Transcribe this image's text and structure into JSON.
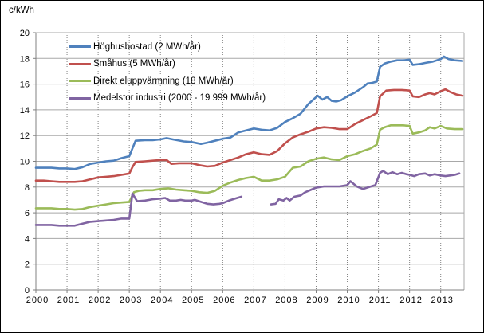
{
  "chart_data": {
    "type": "line",
    "title": "",
    "ylabel": "c/kWh",
    "xlabel": "",
    "legend_position": "top-left-inside",
    "grid": "horizontal-solid, vertical-dotted",
    "x_axis": {
      "min": 2000,
      "max": 2013.75,
      "tick_values": [
        2000,
        2001,
        2002,
        2003,
        2004,
        2005,
        2006,
        2007,
        2008,
        2009,
        2010,
        2011,
        2012,
        2013
      ],
      "tick_labels": [
        "2000",
        "2001",
        "2002",
        "2003",
        "2004",
        "2005",
        "2006",
        "2007",
        "2008",
        "2009",
        "2010",
        "2011",
        "2012",
        "2013"
      ]
    },
    "y_axis": {
      "min": 0,
      "max": 20,
      "tick_values": [
        0,
        2,
        4,
        6,
        8,
        10,
        12,
        14,
        16,
        18,
        20
      ],
      "tick_labels": [
        "0",
        "2",
        "4",
        "6",
        "8",
        "10",
        "12",
        "14",
        "16",
        "18",
        "20"
      ]
    },
    "series": [
      {
        "name": "Höghusbostad (2 MWh/år)",
        "color": "#4F81BD",
        "points": [
          [
            2000.0,
            9.5
          ],
          [
            2000.25,
            9.5
          ],
          [
            2000.5,
            9.5
          ],
          [
            2000.75,
            9.45
          ],
          [
            2001.0,
            9.45
          ],
          [
            2001.25,
            9.4
          ],
          [
            2001.5,
            9.55
          ],
          [
            2001.75,
            9.8
          ],
          [
            2002.0,
            9.9
          ],
          [
            2002.25,
            10.0
          ],
          [
            2002.5,
            10.05
          ],
          [
            2002.75,
            10.25
          ],
          [
            2003.0,
            10.4
          ],
          [
            2003.1,
            11.0
          ],
          [
            2003.2,
            11.6
          ],
          [
            2003.5,
            11.65
          ],
          [
            2003.75,
            11.65
          ],
          [
            2004.0,
            11.7
          ],
          [
            2004.2,
            11.8
          ],
          [
            2004.4,
            11.7
          ],
          [
            2004.75,
            11.55
          ],
          [
            2005.0,
            11.5
          ],
          [
            2005.3,
            11.35
          ],
          [
            2005.5,
            11.45
          ],
          [
            2005.75,
            11.6
          ],
          [
            2006.0,
            11.75
          ],
          [
            2006.25,
            11.85
          ],
          [
            2006.5,
            12.25
          ],
          [
            2006.75,
            12.4
          ],
          [
            2007.0,
            12.55
          ],
          [
            2007.25,
            12.45
          ],
          [
            2007.5,
            12.4
          ],
          [
            2007.75,
            12.6
          ],
          [
            2008.0,
            13.05
          ],
          [
            2008.25,
            13.35
          ],
          [
            2008.5,
            13.7
          ],
          [
            2008.75,
            14.45
          ],
          [
            2009.05,
            15.1
          ],
          [
            2009.2,
            14.8
          ],
          [
            2009.35,
            15.0
          ],
          [
            2009.5,
            14.7
          ],
          [
            2009.65,
            14.65
          ],
          [
            2009.8,
            14.75
          ],
          [
            2010.0,
            15.05
          ],
          [
            2010.25,
            15.35
          ],
          [
            2010.5,
            15.75
          ],
          [
            2010.65,
            16.05
          ],
          [
            2010.8,
            16.1
          ],
          [
            2010.95,
            16.2
          ],
          [
            2011.05,
            17.35
          ],
          [
            2011.2,
            17.6
          ],
          [
            2011.4,
            17.75
          ],
          [
            2011.6,
            17.85
          ],
          [
            2011.8,
            17.85
          ],
          [
            2012.0,
            17.9
          ],
          [
            2012.1,
            17.5
          ],
          [
            2012.3,
            17.55
          ],
          [
            2012.5,
            17.65
          ],
          [
            2012.75,
            17.75
          ],
          [
            2013.0,
            17.95
          ],
          [
            2013.1,
            18.15
          ],
          [
            2013.25,
            17.95
          ],
          [
            2013.45,
            17.85
          ],
          [
            2013.7,
            17.8
          ]
        ]
      },
      {
        "name": "Småhus (5 MWh/år)",
        "color": "#C0504D",
        "points": [
          [
            2000.0,
            8.5
          ],
          [
            2000.25,
            8.5
          ],
          [
            2000.5,
            8.45
          ],
          [
            2000.75,
            8.4
          ],
          [
            2001.0,
            8.4
          ],
          [
            2001.25,
            8.4
          ],
          [
            2001.5,
            8.45
          ],
          [
            2001.75,
            8.6
          ],
          [
            2002.0,
            8.75
          ],
          [
            2002.25,
            8.8
          ],
          [
            2002.5,
            8.85
          ],
          [
            2002.75,
            8.95
          ],
          [
            2003.0,
            9.05
          ],
          [
            2003.1,
            9.55
          ],
          [
            2003.2,
            9.95
          ],
          [
            2003.5,
            10.0
          ],
          [
            2003.75,
            10.05
          ],
          [
            2004.0,
            10.1
          ],
          [
            2004.2,
            10.1
          ],
          [
            2004.35,
            9.8
          ],
          [
            2004.6,
            9.85
          ],
          [
            2004.8,
            9.85
          ],
          [
            2005.0,
            9.85
          ],
          [
            2005.25,
            9.7
          ],
          [
            2005.5,
            9.6
          ],
          [
            2005.75,
            9.65
          ],
          [
            2006.0,
            9.9
          ],
          [
            2006.25,
            10.1
          ],
          [
            2006.5,
            10.3
          ],
          [
            2006.75,
            10.55
          ],
          [
            2007.0,
            10.7
          ],
          [
            2007.25,
            10.55
          ],
          [
            2007.5,
            10.5
          ],
          [
            2007.75,
            10.8
          ],
          [
            2008.0,
            11.4
          ],
          [
            2008.25,
            11.85
          ],
          [
            2008.5,
            12.1
          ],
          [
            2008.75,
            12.3
          ],
          [
            2009.0,
            12.55
          ],
          [
            2009.25,
            12.65
          ],
          [
            2009.5,
            12.6
          ],
          [
            2009.75,
            12.5
          ],
          [
            2010.0,
            12.5
          ],
          [
            2010.25,
            12.9
          ],
          [
            2010.5,
            13.2
          ],
          [
            2010.75,
            13.5
          ],
          [
            2010.95,
            13.75
          ],
          [
            2011.05,
            15.05
          ],
          [
            2011.25,
            15.5
          ],
          [
            2011.5,
            15.55
          ],
          [
            2011.75,
            15.55
          ],
          [
            2012.0,
            15.5
          ],
          [
            2012.1,
            15.05
          ],
          [
            2012.3,
            15.0
          ],
          [
            2012.5,
            15.2
          ],
          [
            2012.65,
            15.3
          ],
          [
            2012.8,
            15.2
          ],
          [
            2013.0,
            15.45
          ],
          [
            2013.15,
            15.6
          ],
          [
            2013.3,
            15.4
          ],
          [
            2013.5,
            15.2
          ],
          [
            2013.7,
            15.1
          ]
        ]
      },
      {
        "name": "Direkt eluppvärmning (18 MWh/år)",
        "color": "#9BBB59",
        "points": [
          [
            2000.0,
            6.35
          ],
          [
            2000.25,
            6.35
          ],
          [
            2000.5,
            6.35
          ],
          [
            2000.75,
            6.3
          ],
          [
            2001.0,
            6.3
          ],
          [
            2001.25,
            6.25
          ],
          [
            2001.5,
            6.3
          ],
          [
            2001.75,
            6.45
          ],
          [
            2002.0,
            6.55
          ],
          [
            2002.25,
            6.65
          ],
          [
            2002.5,
            6.75
          ],
          [
            2002.75,
            6.8
          ],
          [
            2003.0,
            6.85
          ],
          [
            2003.15,
            7.6
          ],
          [
            2003.3,
            7.7
          ],
          [
            2003.5,
            7.75
          ],
          [
            2003.75,
            7.75
          ],
          [
            2004.0,
            7.85
          ],
          [
            2004.25,
            7.9
          ],
          [
            2004.5,
            7.8
          ],
          [
            2004.75,
            7.75
          ],
          [
            2005.0,
            7.7
          ],
          [
            2005.25,
            7.6
          ],
          [
            2005.5,
            7.55
          ],
          [
            2005.75,
            7.7
          ],
          [
            2006.0,
            8.1
          ],
          [
            2006.25,
            8.35
          ],
          [
            2006.5,
            8.55
          ],
          [
            2006.75,
            8.7
          ],
          [
            2007.0,
            8.8
          ],
          [
            2007.25,
            8.5
          ],
          [
            2007.5,
            8.5
          ],
          [
            2007.75,
            8.6
          ],
          [
            2008.0,
            8.8
          ],
          [
            2008.25,
            9.5
          ],
          [
            2008.5,
            9.6
          ],
          [
            2008.75,
            10.0
          ],
          [
            2009.0,
            10.2
          ],
          [
            2009.25,
            10.3
          ],
          [
            2009.5,
            10.15
          ],
          [
            2009.75,
            10.1
          ],
          [
            2010.0,
            10.4
          ],
          [
            2010.25,
            10.55
          ],
          [
            2010.5,
            10.8
          ],
          [
            2010.75,
            11.0
          ],
          [
            2010.95,
            11.3
          ],
          [
            2011.05,
            12.45
          ],
          [
            2011.2,
            12.65
          ],
          [
            2011.4,
            12.8
          ],
          [
            2011.6,
            12.8
          ],
          [
            2011.8,
            12.8
          ],
          [
            2012.0,
            12.75
          ],
          [
            2012.1,
            12.15
          ],
          [
            2012.3,
            12.25
          ],
          [
            2012.5,
            12.4
          ],
          [
            2012.65,
            12.65
          ],
          [
            2012.8,
            12.55
          ],
          [
            2013.0,
            12.75
          ],
          [
            2013.2,
            12.55
          ],
          [
            2013.45,
            12.5
          ],
          [
            2013.7,
            12.5
          ]
        ]
      },
      {
        "name": "Medelstor industri (2000 - 19 999 MWh/år)",
        "color": "#8064A2",
        "points": [
          [
            2000.0,
            5.05
          ],
          [
            2000.25,
            5.05
          ],
          [
            2000.5,
            5.05
          ],
          [
            2000.75,
            5.0
          ],
          [
            2001.0,
            5.0
          ],
          [
            2001.25,
            5.0
          ],
          [
            2001.5,
            5.15
          ],
          [
            2001.75,
            5.3
          ],
          [
            2002.0,
            5.35
          ],
          [
            2002.25,
            5.4
          ],
          [
            2002.5,
            5.45
          ],
          [
            2002.75,
            5.55
          ],
          [
            2003.0,
            5.55
          ],
          [
            2003.1,
            7.5
          ],
          [
            2003.25,
            6.9
          ],
          [
            2003.5,
            6.95
          ],
          [
            2003.75,
            7.05
          ],
          [
            2004.0,
            7.1
          ],
          [
            2004.15,
            7.15
          ],
          [
            2004.3,
            6.95
          ],
          [
            2004.5,
            6.95
          ],
          [
            2004.65,
            7.0
          ],
          [
            2004.8,
            6.95
          ],
          [
            2005.0,
            6.95
          ],
          [
            2005.1,
            7.0
          ],
          [
            2005.3,
            6.85
          ],
          [
            2005.5,
            6.7
          ],
          [
            2005.7,
            6.65
          ],
          [
            2005.9,
            6.7
          ],
          [
            2006.0,
            6.75
          ],
          [
            2006.2,
            6.95
          ],
          [
            2006.4,
            7.1
          ],
          [
            2006.6,
            7.25
          ],
          null,
          [
            2007.55,
            6.65
          ],
          [
            2007.7,
            6.7
          ],
          [
            2007.8,
            7.05
          ],
          [
            2007.95,
            6.95
          ],
          [
            2008.05,
            7.15
          ],
          [
            2008.15,
            6.95
          ],
          [
            2008.3,
            7.25
          ],
          [
            2008.5,
            7.35
          ],
          [
            2008.65,
            7.6
          ],
          [
            2008.85,
            7.8
          ],
          [
            2009.0,
            7.95
          ],
          [
            2009.25,
            8.05
          ],
          [
            2009.5,
            8.05
          ],
          [
            2009.75,
            8.05
          ],
          [
            2010.0,
            8.15
          ],
          [
            2010.1,
            8.45
          ],
          [
            2010.3,
            8.05
          ],
          [
            2010.5,
            7.85
          ],
          [
            2010.7,
            8.0
          ],
          [
            2010.9,
            8.15
          ],
          [
            2011.05,
            9.1
          ],
          [
            2011.15,
            9.25
          ],
          [
            2011.3,
            9.0
          ],
          [
            2011.45,
            9.15
          ],
          [
            2011.6,
            9.0
          ],
          [
            2011.75,
            9.1
          ],
          [
            2011.9,
            9.0
          ],
          [
            2012.0,
            8.95
          ],
          [
            2012.15,
            8.85
          ],
          [
            2012.3,
            9.0
          ],
          [
            2012.5,
            9.05
          ],
          [
            2012.65,
            8.9
          ],
          [
            2012.8,
            9.0
          ],
          [
            2013.0,
            8.9
          ],
          [
            2013.15,
            8.85
          ],
          [
            2013.3,
            8.9
          ],
          [
            2013.45,
            8.95
          ],
          [
            2013.6,
            9.05
          ]
        ]
      }
    ]
  }
}
